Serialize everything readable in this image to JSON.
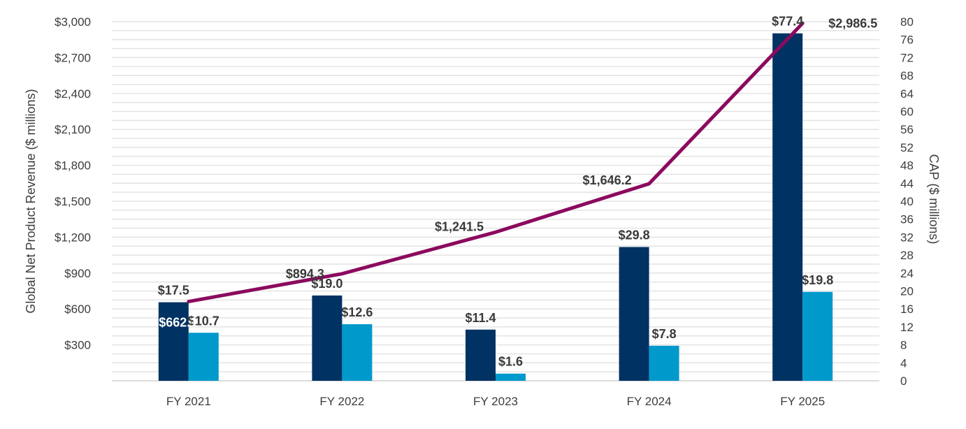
{
  "chart_data": {
    "type": "bar",
    "categories": [
      "FY 2021",
      "FY 2022",
      "FY 2023",
      "FY 2024",
      "FY 2025"
    ],
    "ylabel": "Global Net Product Revenue ($ millions)",
    "y2label": "CAP ($ millions)",
    "ylim": [
      0,
      3000
    ],
    "y2lim": [
      0,
      80
    ],
    "yticks": [
      "$300",
      "$600",
      "$900",
      "$1,200",
      "$1,500",
      "$1,800",
      "$2,100",
      "$2,400",
      "$2,700",
      "$3,000"
    ],
    "y2ticks": [
      "0",
      "4",
      "8",
      "12",
      "16",
      "20",
      "24",
      "28",
      "32",
      "36",
      "40",
      "44",
      "48",
      "52",
      "56",
      "60",
      "64",
      "68",
      "72",
      "76",
      "80"
    ],
    "grid": true,
    "bar_series": [
      {
        "axis": "right",
        "color": "#003263",
        "values": [
          17.5,
          19.0,
          11.4,
          29.8,
          77.4
        ],
        "labels": [
          "$17.5",
          "$19.0",
          "$11.4",
          "$29.8",
          "$77.4"
        ]
      },
      {
        "axis": "right",
        "color": "#0099cc",
        "values": [
          10.7,
          12.6,
          1.6,
          7.8,
          19.8
        ],
        "labels": [
          "$10.7",
          "$12.6",
          "$1.6",
          "$7.8",
          "$19.8"
        ]
      }
    ],
    "line_series": {
      "axis": "left",
      "color": "#8b0a5e",
      "values": [
        662.1,
        894.3,
        1241.5,
        1646.2,
        2986.5
      ],
      "labels": [
        "$662.1",
        "$894.3",
        "$1,241.5",
        "$1,646.2",
        "$2,986.5"
      ]
    }
  }
}
